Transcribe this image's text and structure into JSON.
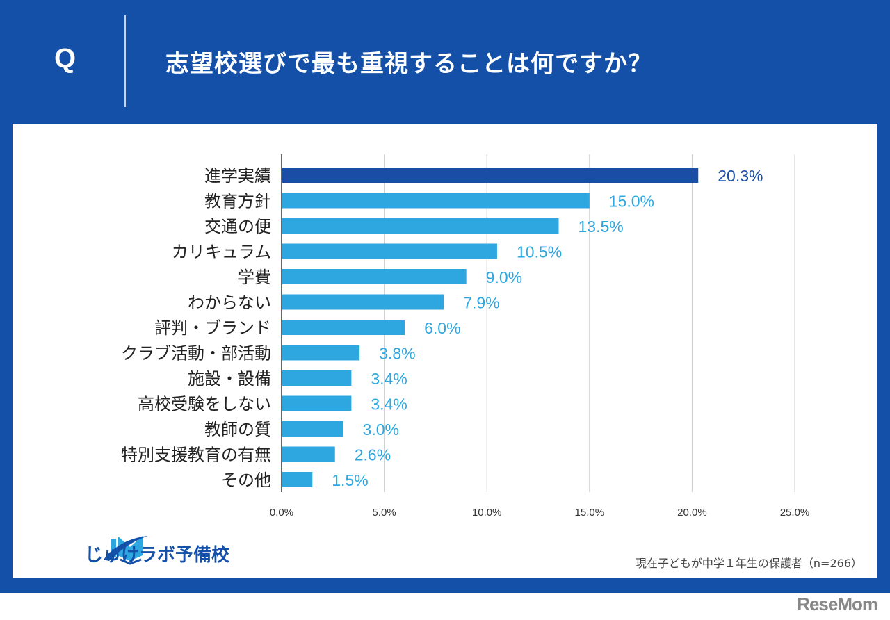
{
  "header": {
    "q_label": "Q",
    "title": "志望校選びで最も重視することは何ですか？"
  },
  "chart_data": {
    "type": "bar",
    "orientation": "horizontal",
    "categories": [
      "進学実績",
      "教育方針",
      "交通の便",
      "カリキュラム",
      "学費",
      "わからない",
      "評判・ブランド",
      "クラブ活動・部活動",
      "施設・設備",
      "高校受験をしない",
      "教師の質",
      "特別支援教育の有無",
      "その他"
    ],
    "values": [
      20.3,
      15.0,
      13.5,
      10.5,
      9.0,
      7.9,
      6.0,
      3.8,
      3.4,
      3.4,
      3.0,
      2.6,
      1.5
    ],
    "data_labels": [
      "20.3%",
      "15.0%",
      "13.5%",
      "10.5%",
      "9.0%",
      "7.9%",
      "6.0%",
      "3.8%",
      "3.4%",
      "3.4%",
      "3.0%",
      "2.6%",
      "1.5%"
    ],
    "xlim": [
      0,
      25
    ],
    "xticks": [
      "0.0%",
      "5.0%",
      "10.0%",
      "15.0%",
      "20.0%",
      "25.0%"
    ],
    "grid": true,
    "colors": {
      "highlight": "#1a4ea6",
      "default": "#2ea7e0"
    }
  },
  "footer": {
    "note": "現在子どもが中学１年生の保護者（n=266）",
    "logo": "じゅけラボ予備校",
    "watermark": "ReseMom"
  }
}
